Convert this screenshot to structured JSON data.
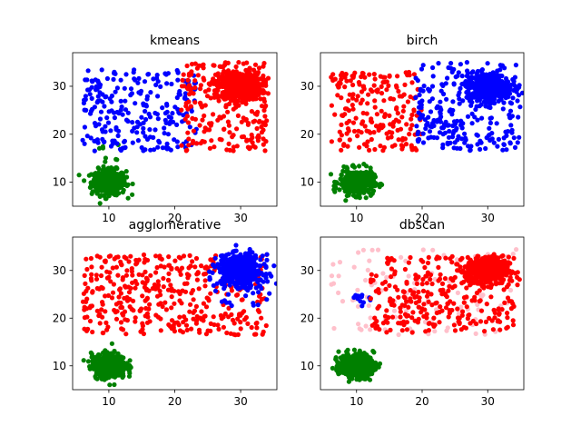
{
  "chart_data": [
    {
      "type": "scatter",
      "title": "kmeans",
      "xlabel": "",
      "ylabel": "",
      "xlim": [
        4.5,
        35.5
      ],
      "ylim": [
        5,
        37
      ],
      "xticks": [
        10,
        20,
        30
      ],
      "yticks": [
        10,
        20,
        30
      ],
      "grid": false,
      "clusters": [
        {
          "color": "#008000",
          "dist": "gauss",
          "center": [
            10,
            10
          ],
          "spread": [
            1.3,
            1.3
          ],
          "count": 380
        },
        {
          "color": "#008000",
          "dist": "uniform",
          "xrange": [
            8,
            11.5
          ],
          "yrange": [
            13,
            18.5
          ],
          "count": 8
        },
        {
          "color": "#0000ff",
          "dist": "uniform",
          "xrange": [
            6,
            23.5
          ],
          "yrange": [
            16.5,
            33.5
          ],
          "count": 250
        },
        {
          "color": "#ff0000",
          "dist": "uniform",
          "xrange": [
            21,
            34
          ],
          "yrange": [
            16.5,
            35
          ],
          "count": 230
        },
        {
          "color": "#ff0000",
          "dist": "gauss",
          "center": [
            30,
            30
          ],
          "spread": [
            1.6,
            1.4
          ],
          "count": 500
        }
      ]
    },
    {
      "type": "scatter",
      "title": "birch",
      "xlabel": "",
      "ylabel": "",
      "xlim": [
        4.5,
        35.5
      ],
      "ylim": [
        5,
        37
      ],
      "xticks": [
        10,
        20,
        30
      ],
      "yticks": [
        10,
        20,
        30
      ],
      "grid": false,
      "clusters": [
        {
          "color": "#008000",
          "dist": "gauss",
          "center": [
            10,
            10
          ],
          "spread": [
            1.3,
            1.3
          ],
          "count": 380
        },
        {
          "color": "#ff0000",
          "dist": "uniform",
          "xrange": [
            6,
            20
          ],
          "yrange": [
            16.5,
            33
          ],
          "count": 210
        },
        {
          "color": "#0000ff",
          "dist": "uniform",
          "xrange": [
            19,
            35
          ],
          "yrange": [
            16.5,
            35
          ],
          "count": 260
        },
        {
          "color": "#0000ff",
          "dist": "gauss",
          "center": [
            30,
            30
          ],
          "spread": [
            1.6,
            1.4
          ],
          "count": 500
        }
      ]
    },
    {
      "type": "scatter",
      "title": "agglomerative",
      "xlabel": "",
      "ylabel": "",
      "xlim": [
        4.5,
        35.5
      ],
      "ylim": [
        5,
        37
      ],
      "xticks": [
        10,
        20,
        30
      ],
      "yticks": [
        10,
        20,
        30
      ],
      "grid": false,
      "clusters": [
        {
          "color": "#008000",
          "dist": "gauss",
          "center": [
            10,
            10
          ],
          "spread": [
            1.3,
            1.3
          ],
          "count": 380
        },
        {
          "color": "#ff0000",
          "dist": "uniform",
          "xrange": [
            6,
            34
          ],
          "yrange": [
            16.5,
            33.5
          ],
          "count": 420
        },
        {
          "color": "#0000ff",
          "dist": "gauss",
          "center": [
            30,
            30
          ],
          "spread": [
            1.7,
            1.6
          ],
          "count": 520
        },
        {
          "color": "#0000ff",
          "dist": "uniform",
          "xrange": [
            27,
            34
          ],
          "yrange": [
            22,
            28
          ],
          "count": 25
        }
      ]
    },
    {
      "type": "scatter",
      "title": "dbscan",
      "xlabel": "",
      "ylabel": "",
      "xlim": [
        4.5,
        35.5
      ],
      "ylim": [
        5,
        37
      ],
      "xticks": [
        10,
        20,
        30
      ],
      "yticks": [
        10,
        20,
        30
      ],
      "grid": false,
      "clusters": [
        {
          "color": "#008000",
          "dist": "gauss",
          "center": [
            10,
            10
          ],
          "spread": [
            1.3,
            1.3
          ],
          "count": 380
        },
        {
          "color": "#ffc0cb",
          "dist": "uniform",
          "xrange": [
            6,
            34.5
          ],
          "yrange": [
            16.5,
            34.5
          ],
          "count": 110
        },
        {
          "color": "#0000ff",
          "dist": "gauss",
          "center": [
            10.5,
            24.5
          ],
          "spread": [
            0.8,
            0.9
          ],
          "count": 12
        },
        {
          "color": "#ff0000",
          "dist": "uniform",
          "xrange": [
            12,
            34
          ],
          "yrange": [
            17,
            33
          ],
          "count": 300
        },
        {
          "color": "#ff0000",
          "dist": "gauss",
          "center": [
            30,
            30
          ],
          "spread": [
            1.6,
            1.4
          ],
          "count": 500
        }
      ]
    }
  ]
}
